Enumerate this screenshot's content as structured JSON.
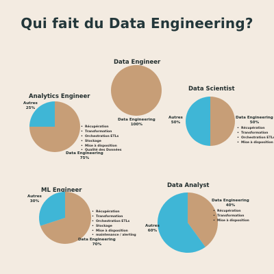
{
  "title": "Qui fait du Data Engineering?",
  "colors": {
    "engineering": "#c79e77",
    "others": "#3fb6d6"
  },
  "charts": [
    {
      "id": "data-engineer",
      "title": "Data Engineer",
      "slices": [
        {
          "label": "Data Engineering",
          "value": "100%",
          "pct": 100
        }
      ],
      "tasks": []
    },
    {
      "id": "analytics-engineer",
      "title": "Analytics Engineer",
      "slices": [
        {
          "label": "Data Engineering",
          "value": "75%",
          "pct": 75
        },
        {
          "label": "Autres",
          "value": "25%",
          "pct": 25
        }
      ],
      "tasks": [
        "Récupération",
        "Transformation",
        "Orchestration ETLs",
        "Stockage",
        "Mise à disposition",
        "Qualité des Données"
      ]
    },
    {
      "id": "data-scientist",
      "title": "Data Scientist",
      "slices": [
        {
          "label": "Data Engineering",
          "value": "50%",
          "pct": 50
        },
        {
          "label": "Autres",
          "value": "50%",
          "pct": 50
        }
      ],
      "tasks": [
        "Récupération",
        "Transformation",
        "Orchestration ETLs",
        "Mise à disposition"
      ]
    },
    {
      "id": "ml-engineer",
      "title": "ML Engineer",
      "slices": [
        {
          "label": "Data Engineering",
          "value": "70%",
          "pct": 70
        },
        {
          "label": "Autres",
          "value": "30%",
          "pct": 30
        }
      ],
      "tasks": [
        "Récupération",
        "Transformation",
        "Orchestration ETLs",
        "Stockage",
        "Mise à disposition",
        "maintenance / alerting"
      ]
    },
    {
      "id": "data-analyst",
      "title": "Data Analyst",
      "slices": [
        {
          "label": "Data Engineering",
          "value": "40%",
          "pct": 40
        },
        {
          "label": "Autres",
          "value": "60%",
          "pct": 60
        }
      ],
      "tasks": [
        "Récupération",
        "Transformation",
        "Mise à disposition"
      ]
    }
  ],
  "chart_data": [
    {
      "type": "pie",
      "title": "Data Engineer",
      "labels": [
        "Data Engineering"
      ],
      "values": [
        100
      ]
    },
    {
      "type": "pie",
      "title": "Analytics Engineer",
      "labels": [
        "Data Engineering",
        "Autres"
      ],
      "values": [
        75,
        25
      ]
    },
    {
      "type": "pie",
      "title": "Data Scientist",
      "labels": [
        "Data Engineering",
        "Autres"
      ],
      "values": [
        50,
        50
      ]
    },
    {
      "type": "pie",
      "title": "ML Engineer",
      "labels": [
        "Data Engineering",
        "Autres"
      ],
      "values": [
        70,
        30
      ]
    },
    {
      "type": "pie",
      "title": "Data Analyst",
      "labels": [
        "Data Engineering",
        "Autres"
      ],
      "values": [
        40,
        60
      ]
    }
  ]
}
